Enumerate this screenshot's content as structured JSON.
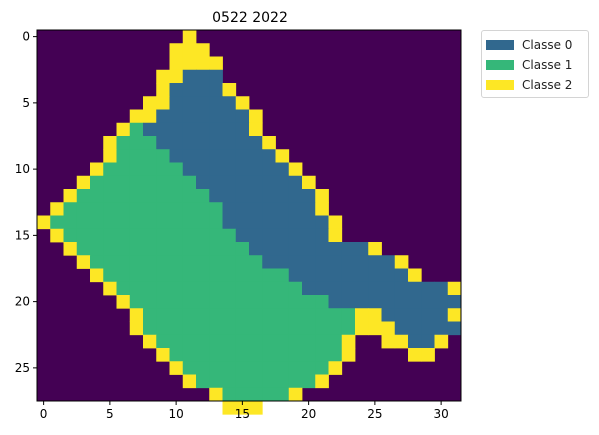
{
  "chart_data": {
    "type": "heatmap",
    "title": "0522 2022",
    "xlabel": "",
    "ylabel": "",
    "x_ticks": [
      0,
      5,
      10,
      15,
      20,
      25,
      30
    ],
    "y_ticks": [
      0,
      5,
      10,
      15,
      20,
      25
    ],
    "x_range": [
      -0.5,
      31.5
    ],
    "y_range": [
      27.5,
      -0.5
    ],
    "background_color": "#440154",
    "legend": [
      {
        "label": "Classe 0",
        "color": "#31688e"
      },
      {
        "label": "Classe 1",
        "color": "#35b779"
      },
      {
        "label": "Classe 2",
        "color": "#fde725"
      }
    ],
    "classes": {
      "0": {
        "name": "Classe 0",
        "color": "#31688e"
      },
      "1": {
        "name": "Classe 1",
        "color": "#35b779"
      },
      "2": {
        "name": "Classe 2",
        "color": "#fde725"
      }
    },
    "grid": [
      "...........2....................",
      "..........222...................",
      "..........2222..................",
      ".........22000..................",
      ".........200002.................",
      "........22000002................",
      ".......2200000002...............",
      "......21000000002...............",
      ".....2111000000002..............",
      ".....21111000000002.............",
      "....2111111000000002............",
      "...211111111000000002...........",
      "..21111111111000000002..........",
      ".211111111111100000002..........",
      "21111111111111000000002.........",
      ".2111111111111100000002.........",
      "..211111111111110000000002......",
      "...2111111111111100000000002....",
      "....2111111111111110000000002...",
      ".....211111111111111000000000002",
      "......211111111111111100000000002",
      ".......2111111111111111122000002",
      ".......21111111111111111222000002",
      "........2111111111111112..22002.",
      ".........211111111111112....22..",
      "..........2111111111112.........",
      "...........21111111112..........",
      ".............2111112............",
      "..............222..............."
    ]
  }
}
